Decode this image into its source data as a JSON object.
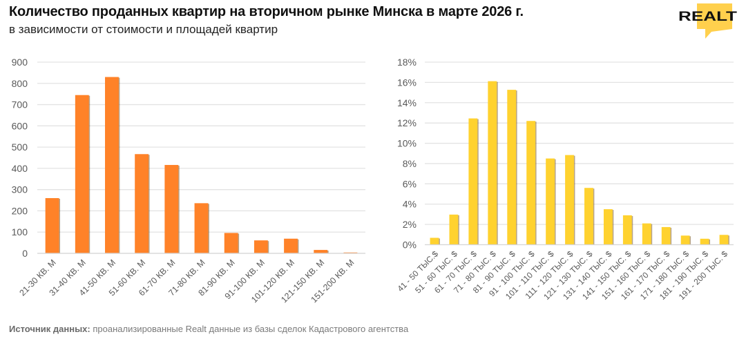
{
  "header": {
    "title": "Количество проданных квартир на вторичном рынке Минска в марте 2026 г.",
    "subtitle": "в зависимости от стоимости и площадей квартир",
    "logo_text": "REALT"
  },
  "footer": {
    "label": "Источник данных:",
    "text": " проанализированные Realt данные из базы сделок Кадастрового агентства"
  },
  "colors": {
    "orange": "#FF8228",
    "yellow": "#FFD22F",
    "logo_yellow": "#FFD04D",
    "grid": "#E3E3E3",
    "tick_text": "#595959"
  },
  "chart_data": [
    {
      "type": "bar",
      "title": "",
      "xlabel": "",
      "ylabel": "",
      "ylim": [
        0,
        900
      ],
      "yticks": [
        0,
        100,
        200,
        300,
        400,
        500,
        600,
        700,
        800,
        900
      ],
      "ytick_labels": [
        "0",
        "100",
        "200",
        "300",
        "400",
        "500",
        "600",
        "700",
        "800",
        "900"
      ],
      "grid": true,
      "legend": "none",
      "categories": [
        "21-30 КВ. М",
        "31-40 КВ. М",
        "41-50 КВ. М",
        "51-60 КВ. М",
        "61-70 КВ. М",
        "71-80 КВ. М",
        "81-90 КВ. М",
        "91-100 КВ. М",
        "101-120 КВ. М",
        "121-150 КВ. М",
        "151-200 КВ. М"
      ],
      "values": [
        260,
        745,
        830,
        467,
        416,
        236,
        96,
        61,
        69,
        16,
        4
      ],
      "color": "#FF8228"
    },
    {
      "type": "bar",
      "title": "",
      "xlabel": "",
      "ylabel": "",
      "ylim": [
        0,
        18
      ],
      "yticks": [
        0,
        2,
        4,
        6,
        8,
        10,
        12,
        14,
        16,
        18
      ],
      "ytick_labels": [
        "0%",
        "2%",
        "4%",
        "6%",
        "8%",
        "10%",
        "12%",
        "14%",
        "16%",
        "18%"
      ],
      "grid": true,
      "legend": "none",
      "value_unit": "%",
      "categories": [
        "41 - 50 ТЫС.$",
        "51 - 60 ТЫС. $",
        "61 - 70 ТЫС. $",
        "71 - 80 ТЫС. $",
        "81 - 90 ТЫС. $",
        "91 - 100 ТЫС. $",
        "101 - 110 ТЫС. $",
        "111 - 120 ТЫС. $",
        "121 - 130 ТЫС. $",
        "131 - 140 ТЫС. $",
        "141 - 150 ТЫС. $",
        "151 - 160 ТЫС. $",
        "161 - 170 ТЫС. $",
        "171 - 180 ТЫС. $",
        "181 - 190 ТЫС. $",
        "191 - 200 ТЫС. $"
      ],
      "values": [
        0.68,
        2.97,
        12.45,
        16.12,
        15.27,
        12.2,
        8.5,
        8.84,
        5.6,
        3.5,
        2.9,
        2.1,
        1.74,
        0.9,
        0.59,
        0.97
      ],
      "color": "#FFD22F"
    }
  ]
}
